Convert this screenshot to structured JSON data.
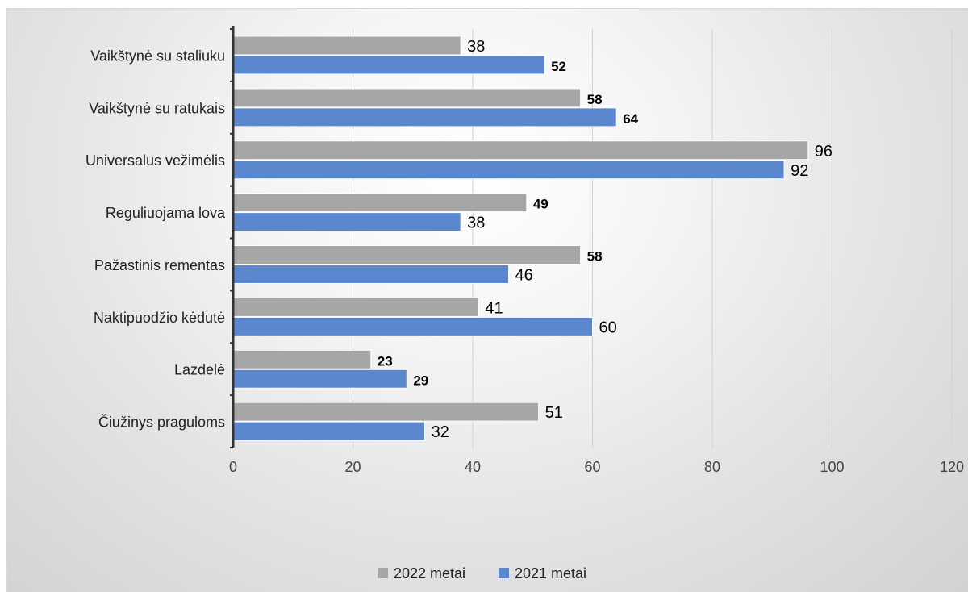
{
  "chart_data": {
    "type": "bar",
    "orientation": "horizontal",
    "categories": [
      "Vaikštynė su staliuku",
      "Vaikštynė su ratukais",
      "Universalus vežimėlis",
      "Reguliuojama lova",
      "Pažastinis rementas",
      "Naktipuodžio kėdutė",
      "Lazdelė",
      "Čiužinys praguloms"
    ],
    "series": [
      {
        "name": "2022 metai",
        "color": "#a6a6a6",
        "values": [
          38,
          58,
          96,
          49,
          58,
          41,
          23,
          51
        ]
      },
      {
        "name": "2021 metai",
        "color": "#5b87cf",
        "values": [
          52,
          64,
          92,
          38,
          46,
          60,
          29,
          32
        ]
      }
    ],
    "bold_labels": [
      [
        false,
        true,
        false,
        true,
        true,
        false,
        true,
        false
      ],
      [
        true,
        true,
        false,
        false,
        false,
        false,
        true,
        false
      ]
    ],
    "xlim": [
      0,
      120
    ],
    "x_ticks": [
      0,
      20,
      40,
      60,
      80,
      100,
      120
    ],
    "grid": true,
    "legend_position": "bottom"
  }
}
